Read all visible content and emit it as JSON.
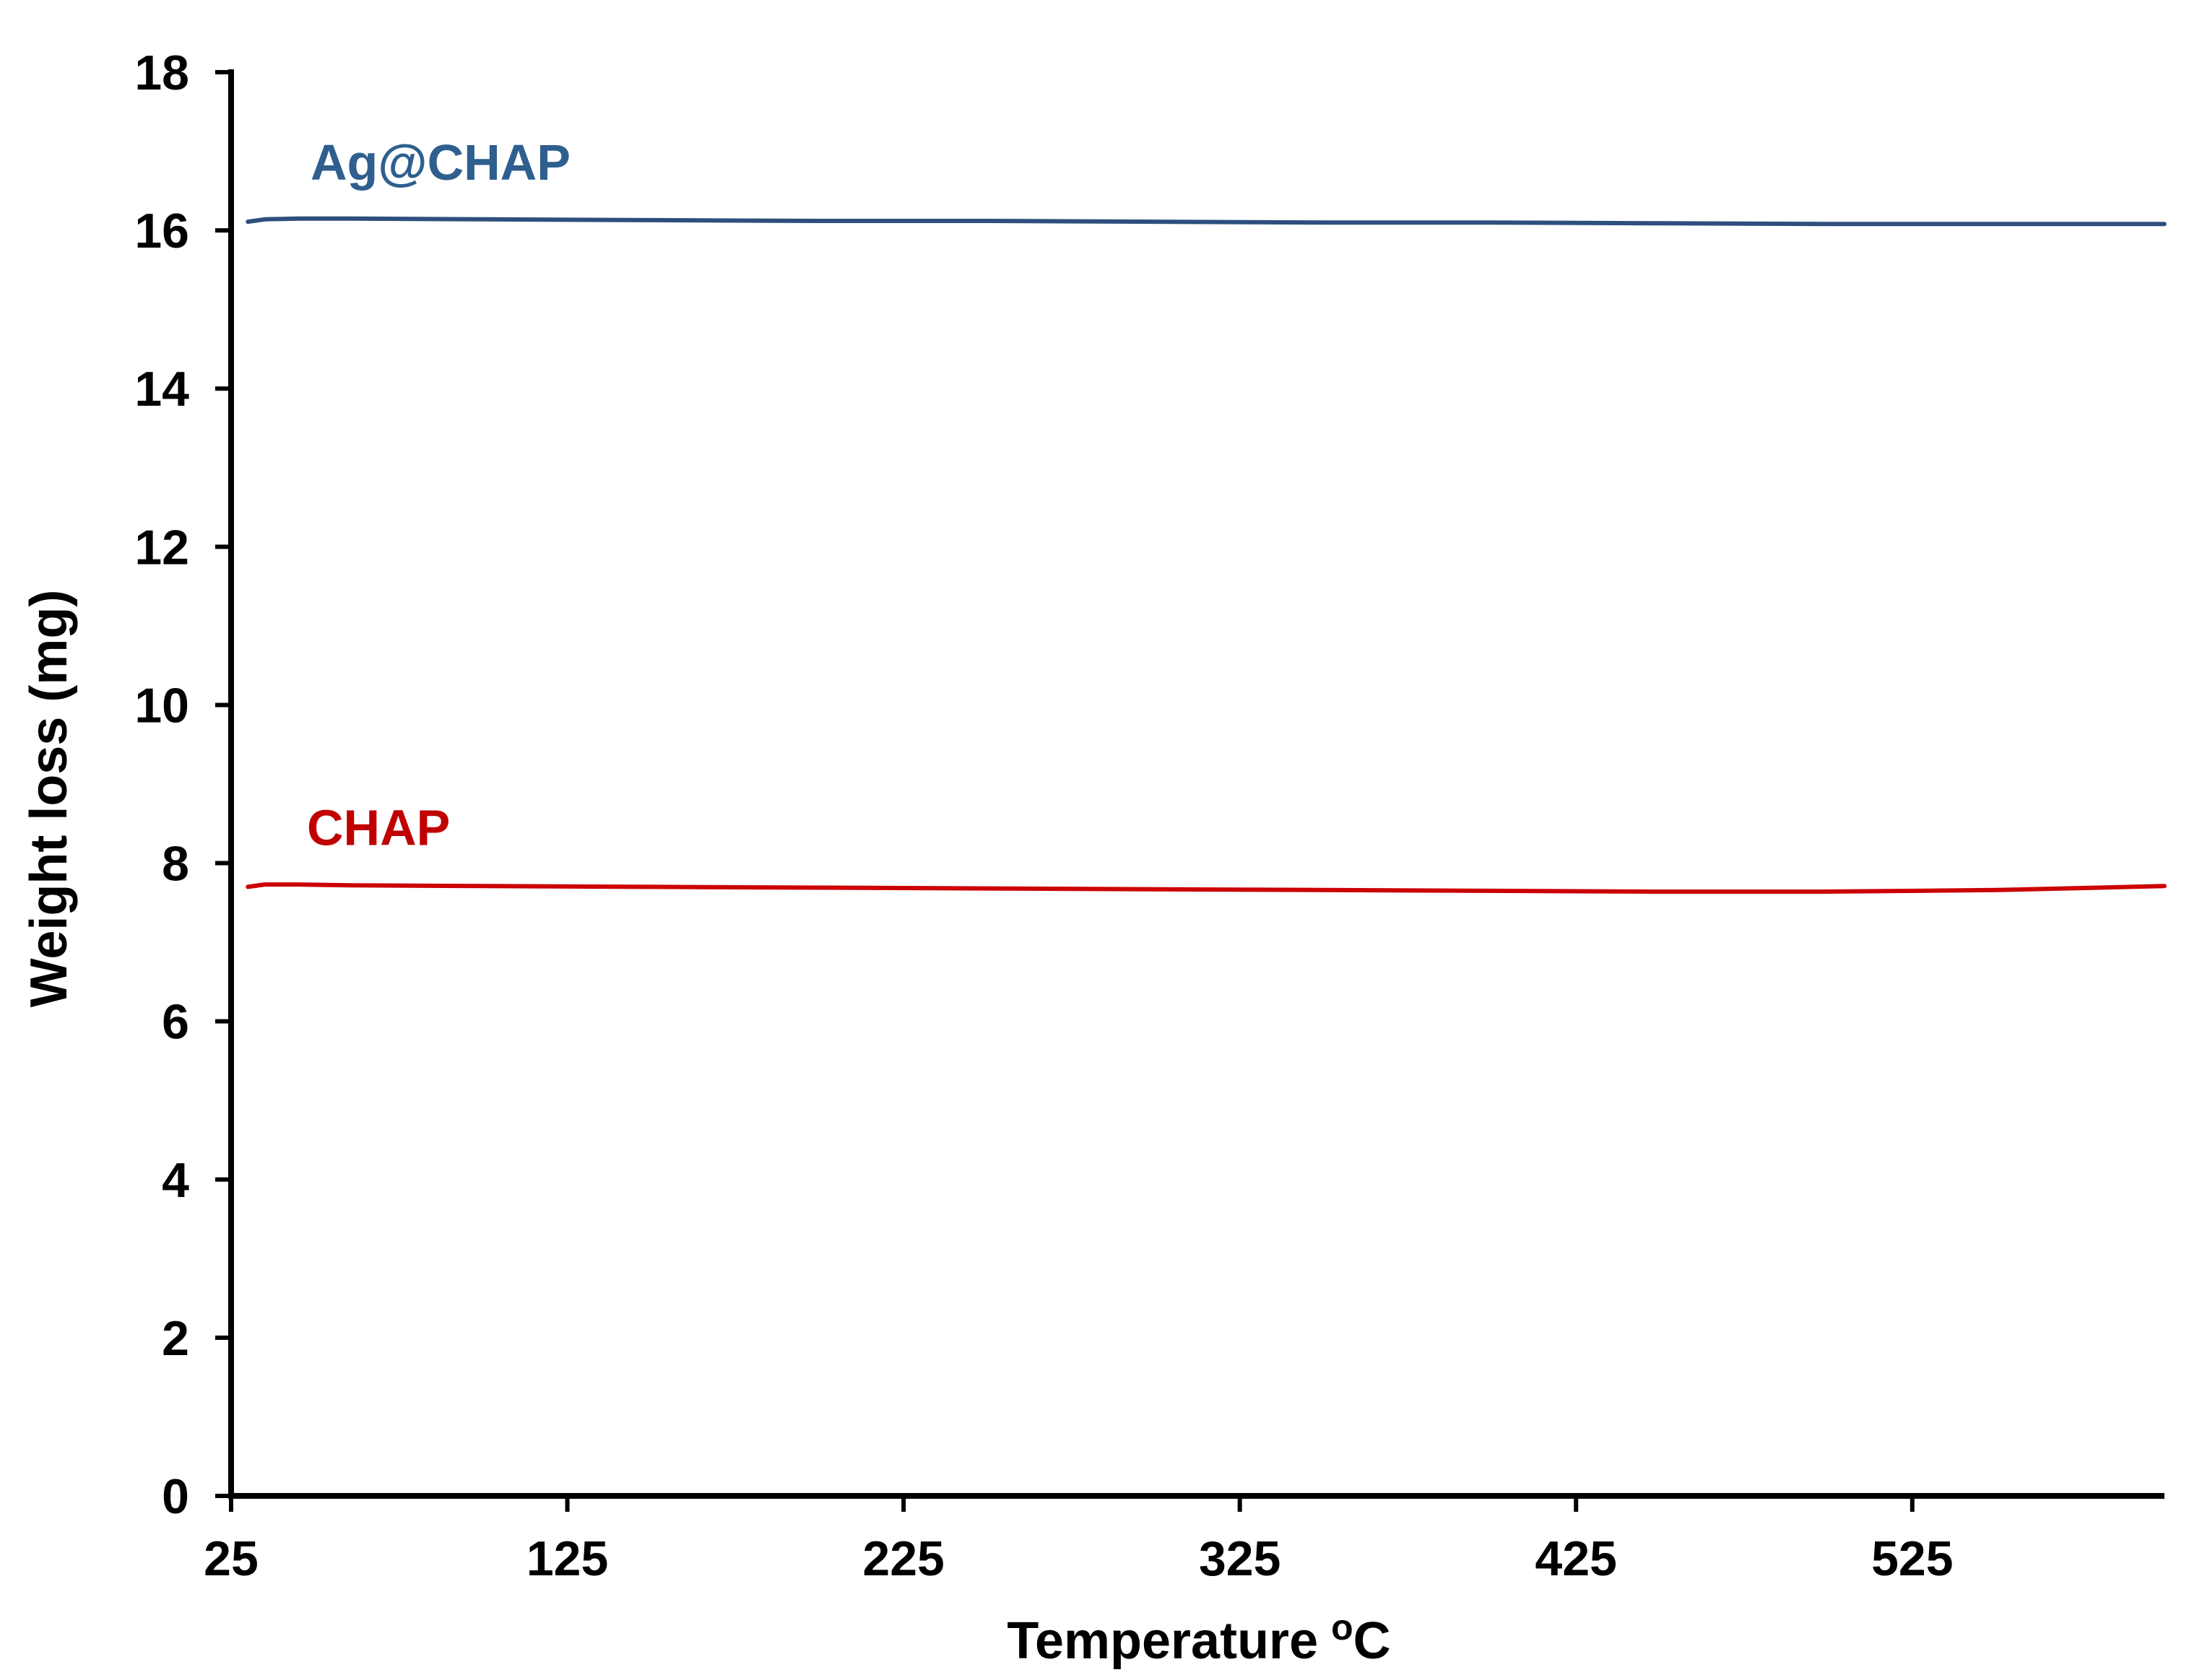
{
  "chart_data": {
    "type": "line",
    "xlabel": "Temperature",
    "xlabel_sup": "o",
    "xlabel_unit": "C",
    "ylabel": "Weight loss (mg)",
    "xlim": [
      25,
      600
    ],
    "ylim": [
      0,
      18
    ],
    "xticks": [
      25,
      125,
      225,
      325,
      425,
      525
    ],
    "yticks": [
      0,
      2,
      4,
      6,
      8,
      10,
      12,
      14,
      16,
      18
    ],
    "grid": false,
    "series": [
      {
        "name": "Ag@CHAP",
        "color": "#2E4F7E",
        "label_color": "#2E5F8E",
        "x": [
          30,
          35,
          45,
          60,
          100,
          150,
          200,
          250,
          300,
          350,
          400,
          450,
          500,
          550,
          600
        ],
        "y": [
          16.11,
          16.14,
          16.15,
          16.15,
          16.14,
          16.13,
          16.12,
          16.12,
          16.11,
          16.1,
          16.1,
          16.09,
          16.08,
          16.08,
          16.08
        ]
      },
      {
        "name": "CHAP",
        "color": "#CC0000",
        "label_color": "#C00000",
        "x": [
          30,
          35,
          45,
          60,
          100,
          150,
          200,
          250,
          300,
          350,
          400,
          450,
          500,
          550,
          600
        ],
        "y": [
          7.7,
          7.73,
          7.73,
          7.72,
          7.71,
          7.7,
          7.69,
          7.68,
          7.67,
          7.66,
          7.65,
          7.64,
          7.64,
          7.66,
          7.71
        ]
      }
    ]
  }
}
